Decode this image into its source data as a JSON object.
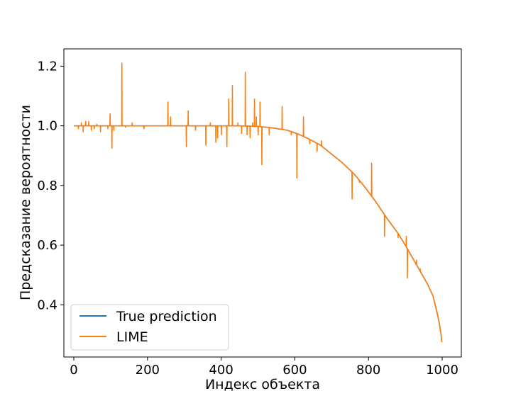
{
  "chart_data": {
    "type": "line",
    "title": "",
    "xlabel": "Индекс объекта",
    "ylabel": "Предсказание вероятности",
    "xlim": [
      -27,
      1052
    ],
    "ylim": [
      0.225,
      1.258
    ],
    "xticks": [
      0,
      200,
      400,
      600,
      800,
      1000
    ],
    "yticks": [
      0.4,
      0.6,
      0.8,
      1.0,
      1.2
    ],
    "xtick_labels": [
      "0",
      "200",
      "400",
      "600",
      "800",
      "1000"
    ],
    "ytick_labels": [
      "0.4",
      "0.6",
      "0.8",
      "1.0",
      "1.2"
    ],
    "grid": false,
    "legend_position": "lower-left",
    "series": [
      {
        "name": "True prediction",
        "color": "#1f77b4",
        "x": [
          0,
          100,
          200,
          300,
          400,
          450,
          500,
          540,
          580,
          610,
          640,
          670,
          700,
          730,
          760,
          790,
          820,
          850,
          880,
          900,
          930,
          960,
          975,
          985,
          992,
          997,
          999
        ],
        "y": [
          1.0,
          1.0,
          1.0,
          1.0,
          1.0,
          1.0,
          0.998,
          0.993,
          0.985,
          0.972,
          0.955,
          0.935,
          0.905,
          0.875,
          0.84,
          0.795,
          0.745,
          0.69,
          0.64,
          0.6,
          0.535,
          0.47,
          0.43,
          0.38,
          0.34,
          0.3,
          0.275
        ]
      },
      {
        "name": "LIME",
        "color": "#ff7f0e",
        "x": [
          0,
          100,
          200,
          300,
          400,
          450,
          500,
          540,
          580,
          610,
          640,
          670,
          700,
          730,
          760,
          790,
          820,
          850,
          880,
          900,
          930,
          960,
          975,
          985,
          992,
          997,
          999
        ],
        "y": [
          1.0,
          1.0,
          1.0,
          1.0,
          1.0,
          1.0,
          0.998,
          0.993,
          0.985,
          0.972,
          0.955,
          0.935,
          0.905,
          0.875,
          0.84,
          0.795,
          0.745,
          0.69,
          0.64,
          0.6,
          0.535,
          0.47,
          0.43,
          0.38,
          0.34,
          0.3,
          0.275
        ],
        "spikes": [
          [
            12,
            0.99
          ],
          [
            20,
            1.01
          ],
          [
            25,
            0.98
          ],
          [
            32,
            1.015
          ],
          [
            40,
            1.015
          ],
          [
            47,
            0.985
          ],
          [
            55,
            0.99
          ],
          [
            62,
            1.005
          ],
          [
            72,
            0.98
          ],
          [
            92,
            0.99
          ],
          [
            98,
            1.04
          ],
          [
            103,
            0.925
          ],
          [
            108,
            0.985
          ],
          [
            130,
            1.21
          ],
          [
            140,
            0.995
          ],
          [
            158,
            1.01
          ],
          [
            190,
            0.99
          ],
          [
            255,
            1.08
          ],
          [
            262,
            1.03
          ],
          [
            305,
            0.93
          ],
          [
            310,
            1.05
          ],
          [
            330,
            0.985
          ],
          [
            358,
            0.935
          ],
          [
            370,
            1.01
          ],
          [
            385,
            0.945
          ],
          [
            390,
            0.96
          ],
          [
            400,
            0.97
          ],
          [
            415,
            0.93
          ],
          [
            420,
            1.09
          ],
          [
            430,
            1.135
          ],
          [
            445,
            1.01
          ],
          [
            455,
            0.975
          ],
          [
            465,
            1.18
          ],
          [
            470,
            0.97
          ],
          [
            478,
            0.96
          ],
          [
            485,
            1.01
          ],
          [
            490,
            1.09
          ],
          [
            495,
            1.03
          ],
          [
            500,
            0.97
          ],
          [
            505,
            1.08
          ],
          [
            510,
            0.87
          ],
          [
            515,
            0.995
          ],
          [
            530,
            0.97
          ],
          [
            565,
            1.065
          ],
          [
            590,
            0.97
          ],
          [
            605,
            0.825
          ],
          [
            623,
            1.03
          ],
          [
            640,
            0.94
          ],
          [
            660,
            0.915
          ],
          [
            672,
            0.95
          ],
          [
            755,
            0.755
          ],
          [
            775,
            0.81
          ],
          [
            808,
            0.875
          ],
          [
            843,
            0.63
          ],
          [
            880,
            0.625
          ],
          [
            902,
            0.63
          ],
          [
            905,
            0.49
          ],
          [
            930,
            0.55
          ],
          [
            940,
            0.52
          ]
        ]
      }
    ]
  }
}
